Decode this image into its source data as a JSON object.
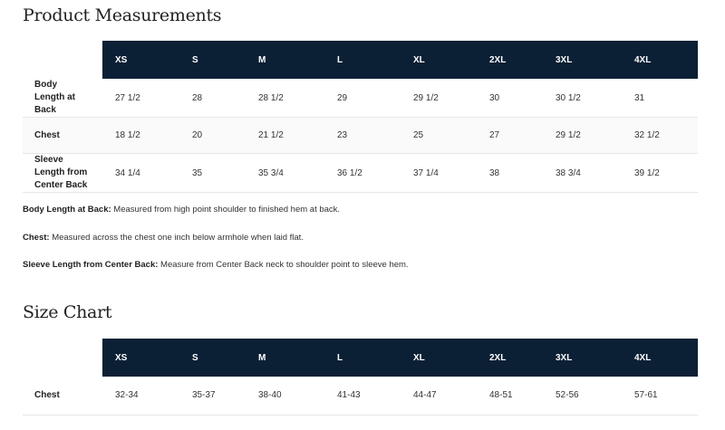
{
  "measurements": {
    "title": "Product Measurements",
    "sizes": [
      "XS",
      "S",
      "M",
      "L",
      "XL",
      "2XL",
      "3XL",
      "4XL"
    ],
    "rows": [
      {
        "label": "Body Length at Back",
        "values": [
          "27 1/2",
          "28",
          "28 1/2",
          "29",
          "29 1/2",
          "30",
          "30 1/2",
          "31"
        ]
      },
      {
        "label": "Chest",
        "values": [
          "18 1/2",
          "20",
          "21 1/2",
          "23",
          "25",
          "27",
          "29 1/2",
          "32 1/2"
        ]
      },
      {
        "label": "Sleeve Length from Center Back",
        "values": [
          "34 1/4",
          "35",
          "35 3/4",
          "36 1/2",
          "37 1/4",
          "38",
          "38 3/4",
          "39 1/2"
        ]
      }
    ]
  },
  "notes": [
    {
      "term": "Body Length at Back:",
      "text": " Measured from high point shoulder to finished hem at back."
    },
    {
      "term": "Chest:",
      "text": " Measured across the chest one inch below armhole when laid flat."
    },
    {
      "term": "Sleeve Length from Center Back:",
      "text": " Measure from Center Back neck to shoulder point to sleeve hem."
    }
  ],
  "size_chart": {
    "title": "Size Chart",
    "sizes": [
      "XS",
      "S",
      "M",
      "L",
      "XL",
      "2XL",
      "3XL",
      "4XL"
    ],
    "rows": [
      {
        "label": "Chest",
        "values": [
          "32-34",
          "35-37",
          "38-40",
          "41-43",
          "44-47",
          "48-51",
          "52-56",
          "57-61"
        ]
      }
    ]
  },
  "colors": {
    "header_bg": "#0b2035",
    "header_text": "#ffffff"
  }
}
